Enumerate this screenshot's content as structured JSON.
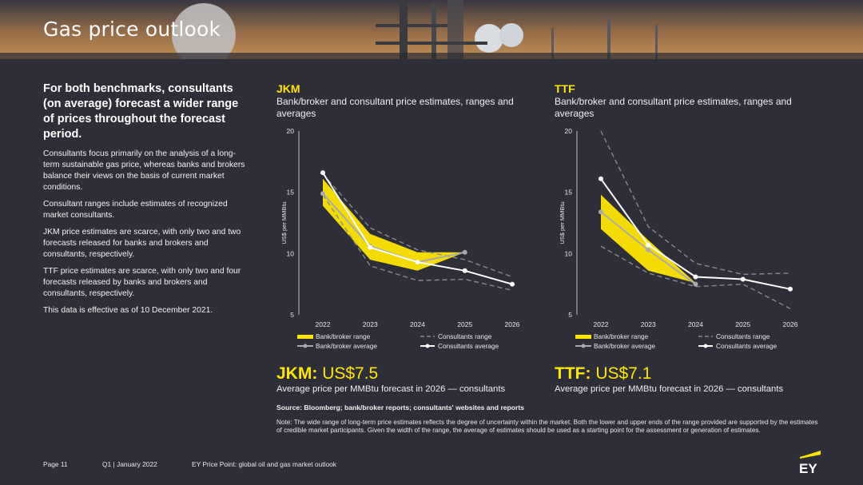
{
  "page": {
    "title": "Gas price outlook"
  },
  "intro": {
    "heading": "For both benchmarks, consultants (on average) forecast a wider range of prices throughout the forecast period.",
    "paragraphs": [
      "Consultants focus primarily on the analysis of a long-term sustainable gas price, whereas banks and brokers balance their views on the basis of current market conditions.",
      "Consultant ranges include estimates of recognized market consultants.",
      "JKM price estimates are scarce, with only two and two forecasts released for banks and brokers and consultants, respectively.",
      "TTF price estimates are scarce, with only two and four forecasts released by banks and brokers and consultants, respectively.",
      "This data is effective as of 10 December 2021."
    ]
  },
  "chart_data": [
    {
      "type": "line",
      "title": "JKM",
      "subtitle": "Bank/broker and consultant price estimates, ranges and averages",
      "ylabel": "US$ per MMBtu",
      "xlabel": "",
      "ylim": [
        5,
        20
      ],
      "yticks": [
        "5",
        "10",
        "15",
        "20"
      ],
      "x": [
        "2022",
        "2023",
        "2024",
        "2025",
        "2026"
      ],
      "bank_range": {
        "low": [
          13.9,
          9.5,
          8.6,
          null,
          null
        ],
        "high": [
          16.1,
          11.6,
          10.1,
          10.1,
          null
        ]
      },
      "consultants_range": {
        "low": [
          14.8,
          9.0,
          7.8,
          7.9,
          7.0
        ],
        "high": [
          16.5,
          12.1,
          10.3,
          9.5,
          8.1
        ]
      },
      "series": [
        {
          "name": "Bank/broker average",
          "values": [
            14.9,
            10.6,
            9.3,
            10.1,
            null
          ]
        },
        {
          "name": "Consultants average",
          "values": [
            16.6,
            10.5,
            9.3,
            8.6,
            7.5
          ]
        }
      ],
      "legend": [
        "Bank/broker range",
        "Consultants range",
        "Bank/broker average",
        "Consultants average"
      ],
      "legend_position": "bottom",
      "grid": false
    },
    {
      "type": "line",
      "title": "TTF",
      "subtitle": "Bank/broker and consultant price estimates, ranges and averages",
      "ylabel": "US$ per MMBtu",
      "xlabel": "",
      "ylim": [
        5,
        20
      ],
      "yticks": [
        "5",
        "10",
        "15",
        "20"
      ],
      "x": [
        "2022",
        "2023",
        "2024",
        "2025",
        "2026"
      ],
      "bank_range": {
        "low": [
          12.0,
          8.6,
          7.6,
          null,
          null
        ],
        "high": [
          14.8,
          11.1,
          7.6,
          null,
          null
        ]
      },
      "consultants_range": {
        "low": [
          10.6,
          8.4,
          7.3,
          7.5,
          5.5
        ],
        "high": [
          20.0,
          12.2,
          9.2,
          8.3,
          8.4
        ]
      },
      "series": [
        {
          "name": "Bank/broker average",
          "values": [
            13.4,
            10.3,
            7.5,
            null,
            null
          ]
        },
        {
          "name": "Consultants average",
          "values": [
            16.1,
            10.7,
            8.1,
            7.9,
            7.1
          ]
        }
      ],
      "legend": [
        "Bank/broker range",
        "Consultants range",
        "Bank/broker average",
        "Consultants average"
      ],
      "legend_position": "bottom",
      "grid": false
    }
  ],
  "summary": [
    {
      "label": "JKM:",
      "amount": "US$7.5",
      "desc": "Average price per MMBtu forecast in 2026 — consultants"
    },
    {
      "label": "TTF:",
      "amount": "US$7.1",
      "desc": "Average price per MMBtu forecast in 2026 — consultants"
    }
  ],
  "source": "Source: Bloomberg; bank/broker reports; consultants' websites and reports",
  "note": "Note: The wide range of long-term price estimates reflects the degree of uncertainty within the market. Both the lower and upper ends of the range provided are supported by the estimates of credible market participants. Given the width of the range, the average of estimates should be used as a starting point for the assessment or generation of estimates.",
  "footer": {
    "page": "Page 11",
    "period": "Q1 | January 2022",
    "publication": "EY Price Point: global oil and gas market outlook"
  },
  "logo": {
    "text": "EY",
    "icon": "ey-logo-icon"
  },
  "colors": {
    "background": "#2e2e38",
    "accent": "#ffe600",
    "bank_range": "#ffe600",
    "consultants_range": "#8a8a8e",
    "bank_average": "#aaaaae",
    "consultants_average": "#ffffff"
  }
}
